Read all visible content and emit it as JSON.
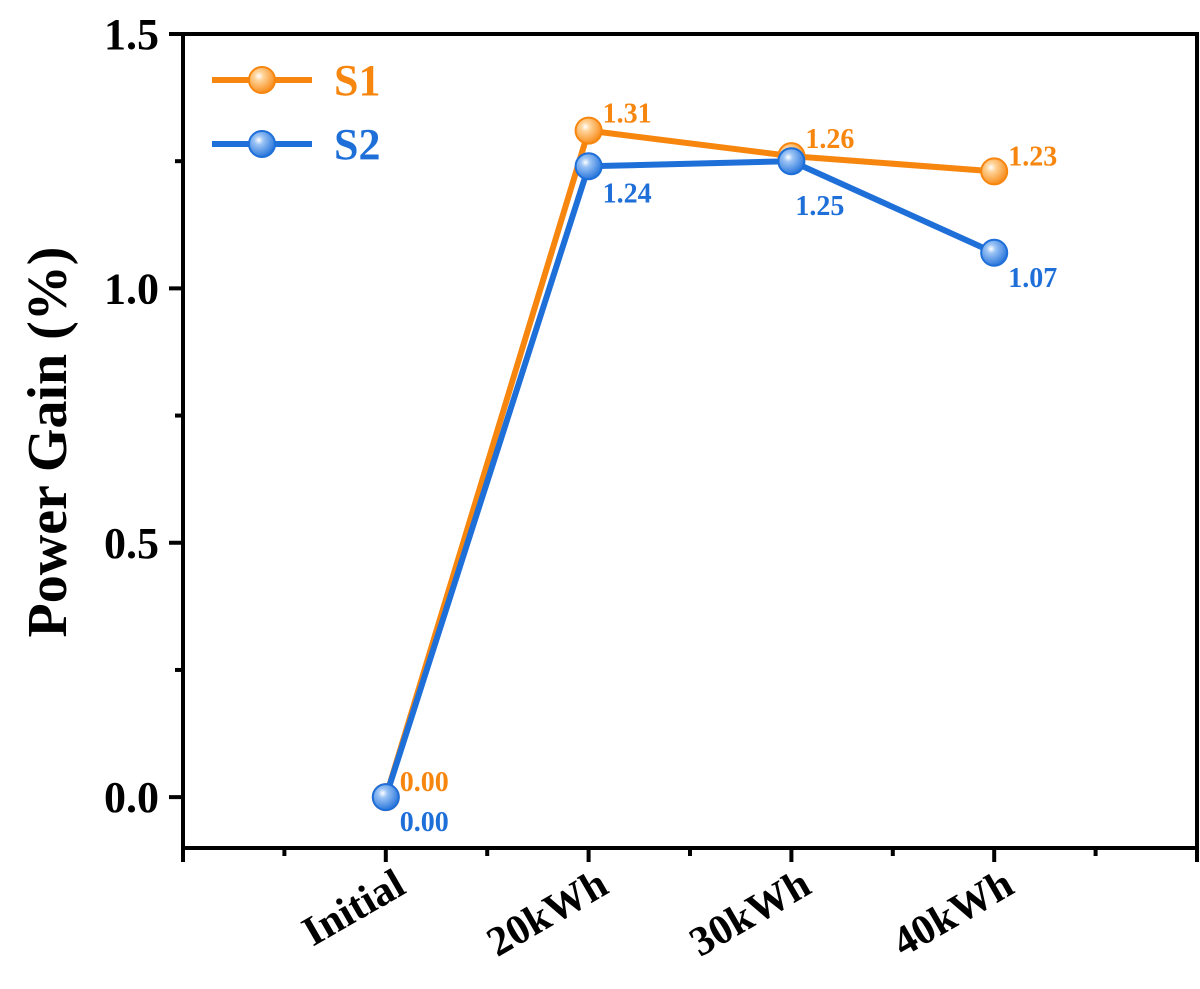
{
  "chart_data": {
    "type": "line",
    "categories": [
      "Initial",
      "20kWh",
      "30kWh",
      "40kWh"
    ],
    "series": [
      {
        "name": "S1",
        "color": "#F7860F",
        "values": [
          0.0,
          1.31,
          1.26,
          1.23
        ],
        "labels": [
          "0.00",
          "1.31",
          "1.26",
          "1.23"
        ]
      },
      {
        "name": "S2",
        "color": "#1F6FD9",
        "values": [
          0.0,
          1.24,
          1.25,
          1.07
        ],
        "labels": [
          "0.00",
          "1.24",
          "1.25",
          "1.07"
        ]
      }
    ],
    "title": "",
    "xlabel": "",
    "ylabel": "Power Gain (%)",
    "ylim": [
      -0.1,
      1.5
    ],
    "yticks": [
      0.0,
      0.5,
      1.0,
      1.5
    ],
    "ytick_labels": [
      "0.0",
      "0.5",
      "1.0",
      "1.5"
    ],
    "legend_position": "top-left",
    "grid": false
  }
}
